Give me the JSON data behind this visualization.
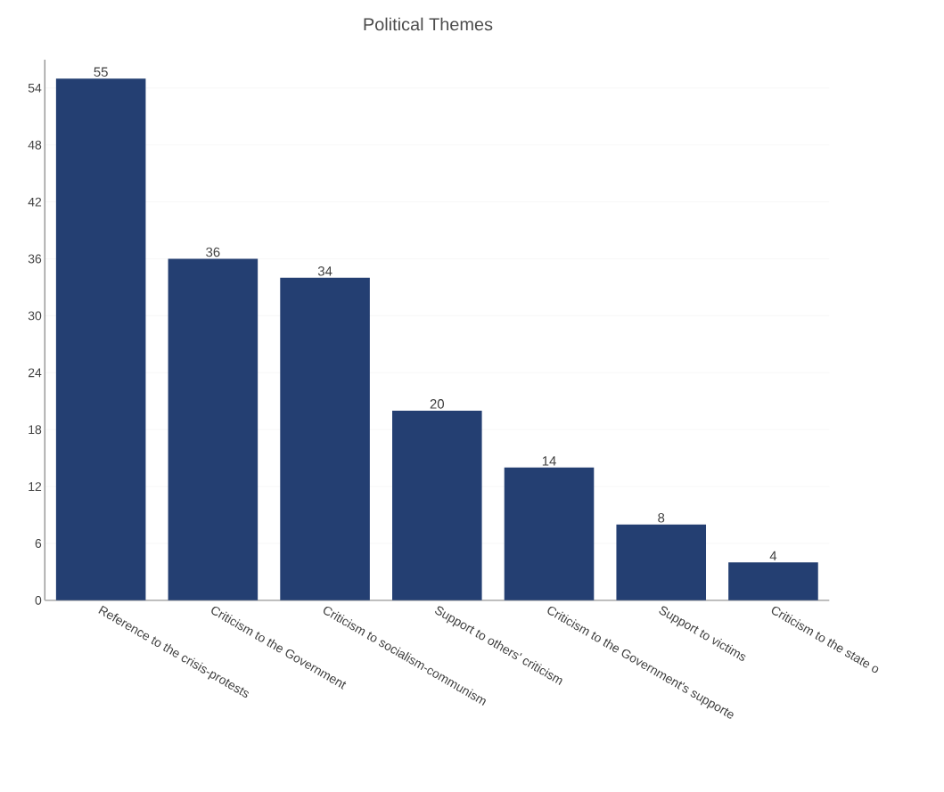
{
  "chart_data": {
    "type": "bar",
    "title": "Political Themes",
    "categories": [
      "Reference to the crisis-protests",
      "Criticism to the Government",
      "Criticism to socialism-communism",
      "Support to others' criticism",
      "Criticism to the Government's supporte",
      "Support to victims",
      "Criticism to the state o"
    ],
    "values": [
      55,
      36,
      34,
      20,
      14,
      8,
      4
    ],
    "color": "#243f72",
    "ylim": [
      0,
      57
    ],
    "yticks": [
      0,
      6,
      12,
      18,
      24,
      30,
      36,
      42,
      48,
      54
    ],
    "grid": "y",
    "data_labels": true
  }
}
